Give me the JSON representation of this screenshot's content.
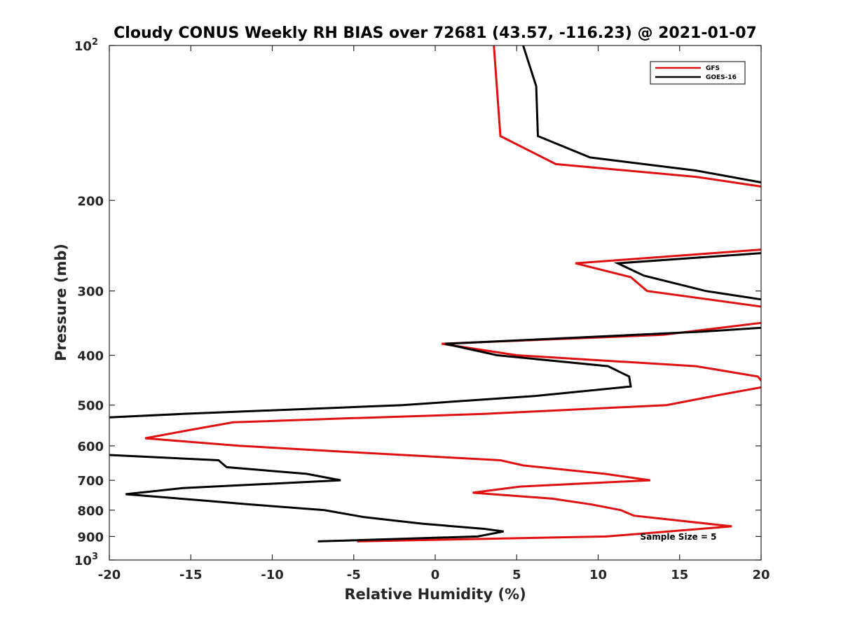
{
  "chart_data": {
    "type": "line",
    "title": "Cloudy CONUS Weekly RH BIAS over 72681 (43.57, -116.23) @ 2021-01-07",
    "xlabel": "Relative Humidity (%)",
    "ylabel": "Pressure (mb)",
    "xlim": [
      -20,
      20
    ],
    "ylim": [
      100,
      1000
    ],
    "y_scale": "log",
    "y_reversed": true,
    "grid": false,
    "legend_position": "top-right",
    "x_ticks": [
      -20,
      -15,
      -10,
      -5,
      0,
      5,
      10,
      15,
      20
    ],
    "x_tick_labels": [
      "-20",
      "-15",
      "-10",
      "-5",
      "0",
      "5",
      "10",
      "15",
      "20"
    ],
    "y_ticks": [
      100,
      200,
      300,
      400,
      500,
      600,
      700,
      800,
      900,
      1000
    ],
    "y_tick_labels": [
      {
        "base": "10",
        "exp": "2"
      },
      {
        "base": "200",
        "exp": ""
      },
      {
        "base": "300",
        "exp": ""
      },
      {
        "base": "400",
        "exp": ""
      },
      {
        "base": "500",
        "exp": ""
      },
      {
        "base": "600",
        "exp": ""
      },
      {
        "base": "700",
        "exp": ""
      },
      {
        "base": "800",
        "exp": ""
      },
      {
        "base": "900",
        "exp": ""
      },
      {
        "base": "10",
        "exp": "3"
      }
    ],
    "series": [
      {
        "name": "GFS",
        "color": "#e01010",
        "points": [
          [
            3.6,
            100
          ],
          [
            4.0,
            150
          ],
          [
            7.4,
            170
          ],
          [
            16,
            180
          ],
          [
            21,
            190
          ],
          [
            null,
            null
          ],
          [
            21,
            248
          ],
          [
            8.6,
            265
          ],
          [
            12,
            282
          ],
          [
            13,
            300
          ],
          [
            21,
            325
          ],
          [
            null,
            null
          ],
          [
            21,
            343
          ],
          [
            14,
            365
          ],
          [
            0.4,
            380
          ],
          [
            5,
            400
          ],
          [
            16,
            420
          ],
          [
            19.8,
            440
          ],
          [
            20.3,
            460
          ],
          [
            17.4,
            478
          ],
          [
            14.2,
            500
          ],
          [
            3,
            520
          ],
          [
            -5,
            530
          ],
          [
            -12.4,
            540
          ],
          [
            -15.2,
            560
          ],
          [
            -17.8,
            580
          ],
          [
            -12,
            600
          ],
          [
            -4,
            620
          ],
          [
            4,
            640
          ],
          [
            5.4,
            655
          ],
          [
            10.4,
            680
          ],
          [
            13.2,
            700
          ],
          [
            5.2,
            720
          ],
          [
            2.3,
            740
          ],
          [
            7.2,
            760
          ],
          [
            9.6,
            780
          ],
          [
            11.4,
            800
          ],
          [
            12.2,
            820
          ],
          [
            18.2,
            860
          ],
          [
            10.5,
            900
          ],
          [
            -4.8,
            920
          ]
        ]
      },
      {
        "name": "GOES-16",
        "color": "#000000",
        "points": [
          [
            5.4,
            100
          ],
          [
            6.2,
            120
          ],
          [
            6.3,
            150
          ],
          [
            9.5,
            165
          ],
          [
            16,
            175
          ],
          [
            21,
            187
          ],
          [
            null,
            null
          ],
          [
            21,
            252
          ],
          [
            11.2,
            265
          ],
          [
            12.8,
            280
          ],
          [
            16.6,
            300
          ],
          [
            21,
            315
          ],
          [
            null,
            null
          ],
          [
            21,
            352
          ],
          [
            16.3,
            360
          ],
          [
            0.6,
            380
          ],
          [
            3.8,
            400
          ],
          [
            10.6,
            420
          ],
          [
            11.9,
            440
          ],
          [
            12,
            460
          ],
          [
            6.1,
            480
          ],
          [
            -2.0,
            500
          ],
          [
            -15.5,
            520
          ],
          [
            -21,
            530
          ],
          [
            null,
            null
          ],
          [
            -21,
            623
          ],
          [
            -13.3,
            640
          ],
          [
            -12.8,
            660
          ],
          [
            -7.9,
            680
          ],
          [
            -5.8,
            700
          ],
          [
            -15.5,
            725
          ],
          [
            -19.0,
            745
          ],
          [
            -14.5,
            765
          ],
          [
            -11.3,
            780
          ],
          [
            -6.8,
            800
          ],
          [
            -4.4,
            825
          ],
          [
            -0.8,
            850
          ],
          [
            3.0,
            870
          ],
          [
            4.2,
            880
          ],
          [
            2.6,
            900
          ],
          [
            -7.2,
            920
          ]
        ]
      }
    ],
    "annotations": [
      {
        "text": "Sample Size = 5",
        "x": 16,
        "y": 900
      }
    ]
  }
}
